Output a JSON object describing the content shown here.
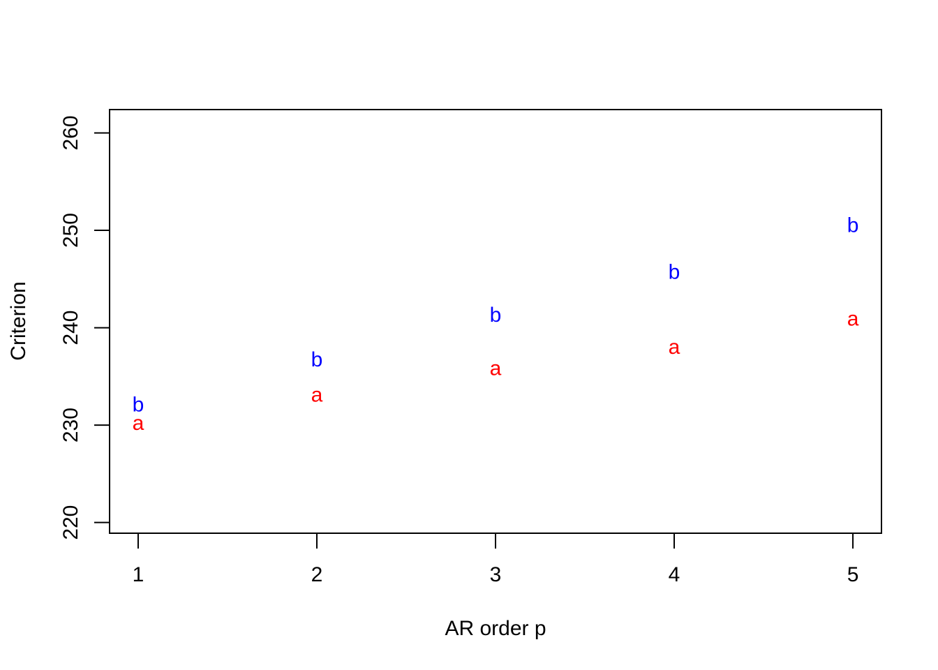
{
  "chart_data": {
    "type": "scatter",
    "title": "",
    "xlabel": "AR order p",
    "ylabel": "Criterion",
    "x_ticks": [
      1,
      2,
      3,
      4,
      5
    ],
    "y_ticks": [
      220,
      230,
      240,
      250,
      260
    ],
    "xlim": [
      0.84,
      5.16
    ],
    "ylim": [
      218.9,
      262.4
    ],
    "grid": false,
    "legend": "none",
    "series": [
      {
        "symbol": "a",
        "color": "#ff0000",
        "x": [
          1,
          2,
          3,
          4,
          5
        ],
        "y": [
          230.2,
          233.1,
          235.8,
          238.0,
          240.9
        ]
      },
      {
        "symbol": "b",
        "color": "#0000ff",
        "x": [
          1,
          2,
          3,
          4,
          5
        ],
        "y": [
          232.1,
          236.7,
          241.3,
          245.7,
          250.5
        ]
      }
    ]
  }
}
